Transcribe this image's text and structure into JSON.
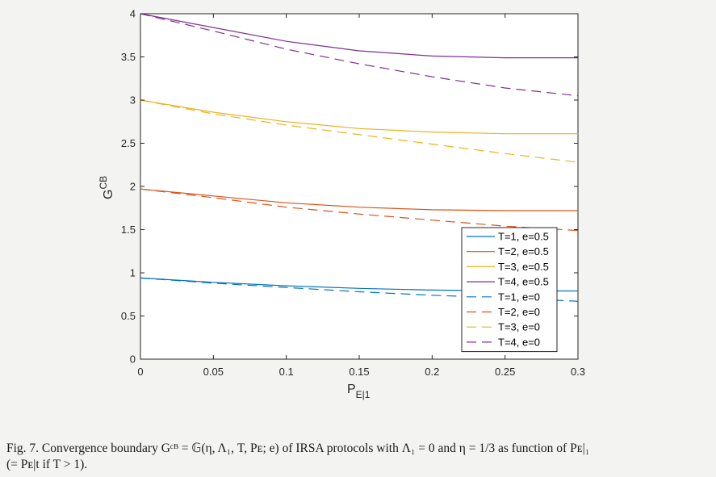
{
  "caption": {
    "line1": "Fig. 7.   Convergence boundary Gᶜᴮ = 𝔾(η, Λ₁, T, Pᴇ; e) of IRSA protocols with Λ₁ = 0 and η = 1/3 as function of Pᴇ|₁",
    "line2": "(= Pᴇ|t if T > 1)."
  },
  "chart_data": {
    "type": "line",
    "xlabel": "P",
    "xlabel_sub": "E|1",
    "ylabel": "G",
    "ylabel_sup": "CB",
    "xlim": [
      0,
      0.3
    ],
    "ylim": [
      0,
      4
    ],
    "xticks": [
      "0",
      "0.05",
      "0.1",
      "0.15",
      "0.2",
      "0.25",
      "0.3"
    ],
    "yticks": [
      "0",
      "0.5",
      "1",
      "1.5",
      "2",
      "2.5",
      "3",
      "3.5",
      "4"
    ],
    "xtick_values": [
      0,
      0.05,
      0.1,
      0.15,
      0.2,
      0.25,
      0.3
    ],
    "ytick_values": [
      0,
      0.5,
      1,
      1.5,
      2,
      2.5,
      3,
      3.5,
      4
    ],
    "grid": false,
    "legend_position": "bottom-right",
    "x": [
      0,
      0.05,
      0.1,
      0.15,
      0.2,
      0.25,
      0.3
    ],
    "series": [
      {
        "name": "T=1, e=0.5",
        "color": "#0072bd",
        "dash": "solid",
        "values": [
          0.94,
          0.89,
          0.85,
          0.82,
          0.8,
          0.79,
          0.79
        ]
      },
      {
        "name": "T=2, e=0.5",
        "color": "#d95319",
        "dash": "solid",
        "values": [
          1.97,
          1.89,
          1.81,
          1.76,
          1.73,
          1.72,
          1.72
        ]
      },
      {
        "name": "T=3, e=0.5",
        "color": "#edb120",
        "dash": "solid",
        "values": [
          3.0,
          2.86,
          2.75,
          2.67,
          2.63,
          2.61,
          2.61
        ]
      },
      {
        "name": "T=4, e=0.5",
        "color": "#7e2f8e",
        "dash": "solid",
        "values": [
          4.0,
          3.84,
          3.68,
          3.57,
          3.51,
          3.49,
          3.49
        ]
      },
      {
        "name": "T=1, e=0",
        "color": "#0072bd",
        "dash": "dashed",
        "values": [
          0.94,
          0.88,
          0.83,
          0.78,
          0.74,
          0.71,
          0.67
        ]
      },
      {
        "name": "T=2, e=0",
        "color": "#d95319",
        "dash": "dashed",
        "values": [
          1.97,
          1.87,
          1.76,
          1.68,
          1.61,
          1.54,
          1.49
        ]
      },
      {
        "name": "T=3, e=0",
        "color": "#edb120",
        "dash": "dashed",
        "values": [
          3.0,
          2.84,
          2.71,
          2.6,
          2.49,
          2.38,
          2.28
        ]
      },
      {
        "name": "T=4, e=0",
        "color": "#7e2f8e",
        "dash": "dashed",
        "values": [
          4.0,
          3.8,
          3.59,
          3.42,
          3.27,
          3.14,
          3.05
        ]
      }
    ]
  }
}
